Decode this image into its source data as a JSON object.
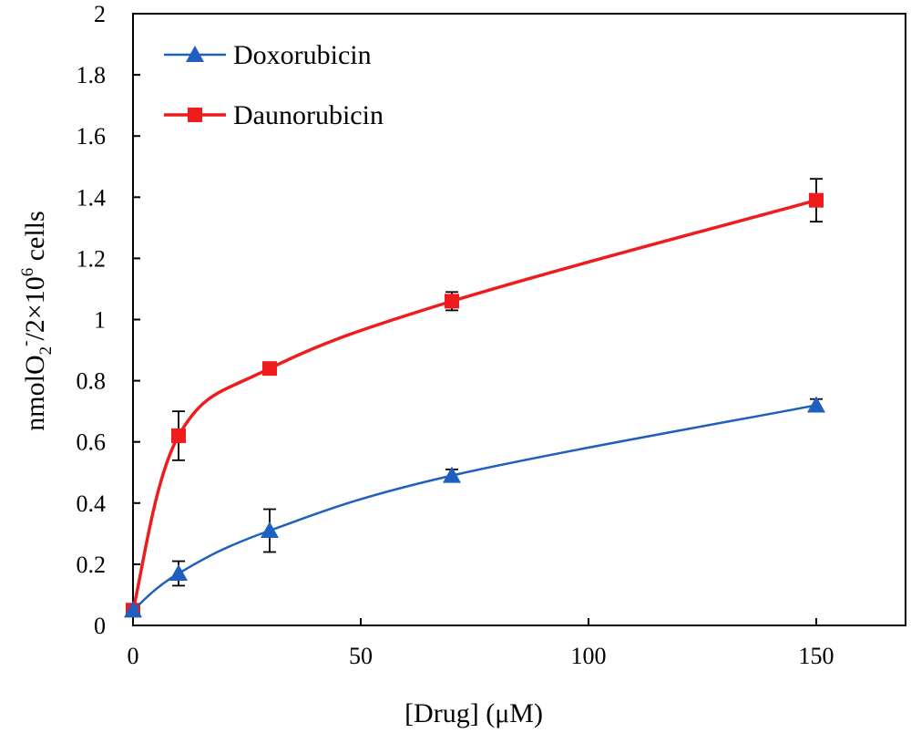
{
  "chart_data": {
    "type": "line",
    "xlabel": "[Drug] (μM)",
    "ylabel_parts": {
      "base1": "nmolO",
      "sub": "2",
      "sup1": "-",
      "mid": "/2×10",
      "sup2": "6",
      "tail": " cells"
    },
    "xlim": [
      0,
      170
    ],
    "ylim": [
      0,
      2
    ],
    "x_ticks": [
      0,
      50,
      100,
      150
    ],
    "x_tick_labels": [
      "0",
      "50",
      "100",
      "150"
    ],
    "y_ticks": [
      0,
      0.2,
      0.4,
      0.6,
      0.8,
      1.0,
      1.2,
      1.4,
      1.6,
      1.8,
      2.0
    ],
    "y_tick_labels": [
      "0",
      "0.2",
      "0.4",
      "0.6",
      "0.8",
      "1",
      "1.2",
      "1.4",
      "1.6",
      "1.8",
      "2"
    ],
    "grid": false,
    "legend_position": "top-left",
    "series": [
      {
        "name": "Doxorubicin",
        "color": "#1f5fbf",
        "marker": "triangle",
        "x": [
          0,
          10,
          30,
          70,
          150
        ],
        "y": [
          0.05,
          0.17,
          0.31,
          0.49,
          0.72
        ],
        "err": [
          0.0,
          0.04,
          0.07,
          0.02,
          0.02
        ]
      },
      {
        "name": "Daunorubicin",
        "color": "#ee1c1c",
        "marker": "square",
        "x": [
          0,
          10,
          30,
          70,
          150
        ],
        "y": [
          0.05,
          0.62,
          0.84,
          1.06,
          1.39
        ],
        "err": [
          0.0,
          0.08,
          0.01,
          0.03,
          0.07
        ]
      }
    ]
  }
}
